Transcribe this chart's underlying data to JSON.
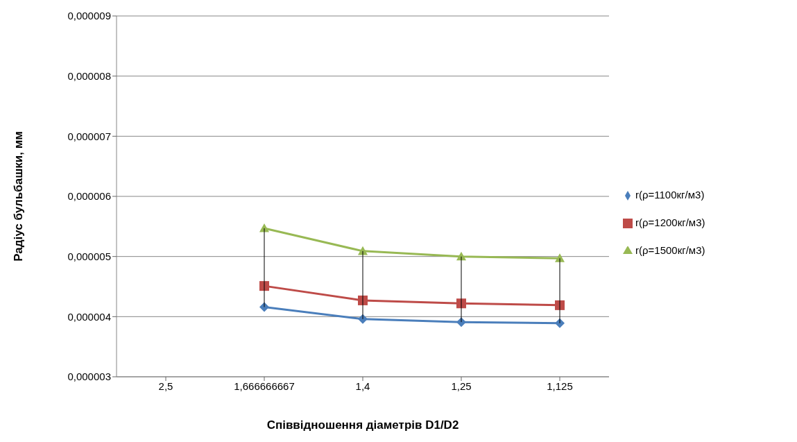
{
  "chart_data": {
    "type": "line",
    "xlabel": "Співвідношення діаметрів D1/D2",
    "ylabel": "Радіус бульбашки, мм",
    "categories": [
      "2,5",
      "1,666666667",
      "1,4",
      "1,25",
      "1,125"
    ],
    "series": [
      {
        "name": "r(ρ=1100кг/м3)",
        "color": "#4a7ebb",
        "marker": "diamond",
        "values": [
          null,
          4.16e-06,
          3.96e-06,
          3.91e-06,
          3.89e-06
        ]
      },
      {
        "name": "r(ρ=1200кг/м3)",
        "color": "#be4b48",
        "marker": "square",
        "values": [
          null,
          4.51e-06,
          4.27e-06,
          4.22e-06,
          4.19e-06
        ]
      },
      {
        "name": "r(ρ=1500кг/м3)",
        "color": "#98b954",
        "marker": "triangle",
        "values": [
          null,
          5.47e-06,
          5.09e-06,
          5e-06,
          4.97e-06
        ]
      }
    ],
    "ylim": [
      3e-06,
      9e-06
    ],
    "yticks": [
      {
        "value": 3e-06,
        "label": "0,000003"
      },
      {
        "value": 4e-06,
        "label": "0,000004"
      },
      {
        "value": 5e-06,
        "label": "0,000005"
      },
      {
        "value": 6e-06,
        "label": "0,000006"
      },
      {
        "value": 7e-06,
        "label": "0,000007"
      },
      {
        "value": 8e-06,
        "label": "0,000008"
      },
      {
        "value": 9e-06,
        "label": "0,000009"
      }
    ],
    "grid": "y",
    "legend": "right",
    "line_style": "solid"
  }
}
